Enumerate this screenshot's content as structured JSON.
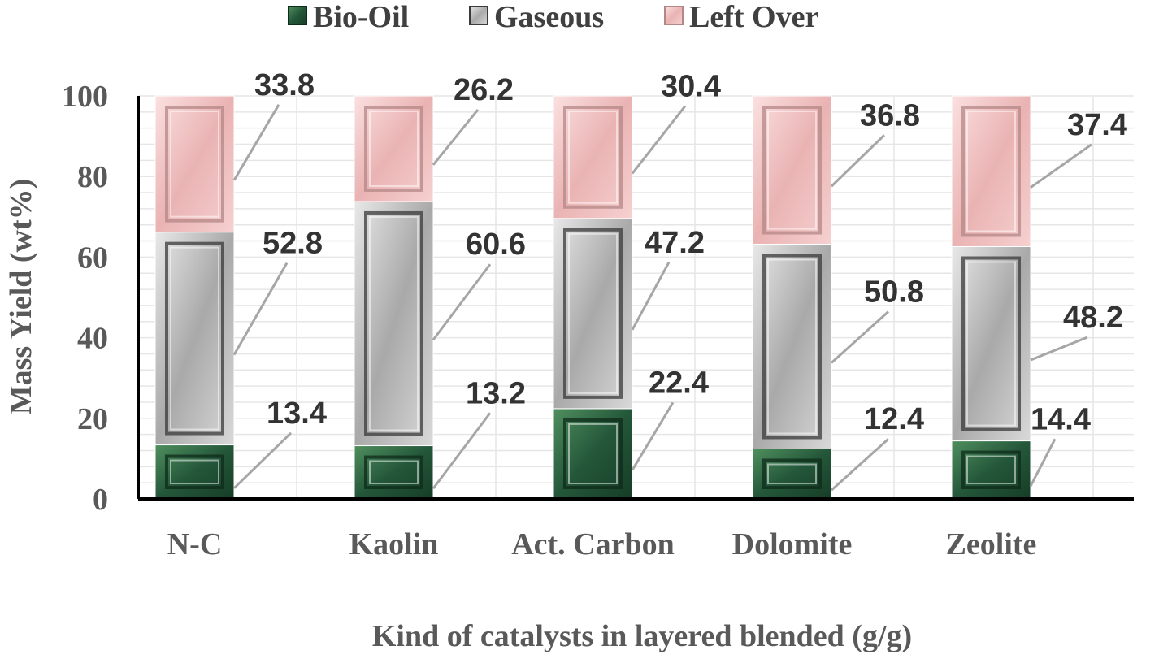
{
  "chart_data": {
    "type": "bar",
    "stacked": true,
    "categories": [
      "N-C",
      "Kaolin",
      "Act. Carbon",
      "Dolomite",
      "Zeolite"
    ],
    "series": [
      {
        "name": "Bio-Oil",
        "values": [
          13.4,
          13.2,
          22.4,
          12.4,
          14.4
        ],
        "color": "#2e6b3f"
      },
      {
        "name": "Gaseous",
        "values": [
          52.8,
          60.6,
          47.2,
          50.8,
          48.2
        ],
        "color": "#bfbfbf"
      },
      {
        "name": "Left Over",
        "values": [
          33.8,
          26.2,
          30.4,
          36.8,
          37.4
        ],
        "color": "#f2c4c4"
      }
    ],
    "title": "",
    "xlabel": "Kind of catalysts in layered blended (g/g)",
    "ylabel": "Mass Yield (wt%)",
    "ylim": [
      0,
      100
    ],
    "yticks": [
      "0",
      "20",
      "40",
      "60",
      "80",
      "100"
    ],
    "grid": true,
    "legend": "top"
  }
}
